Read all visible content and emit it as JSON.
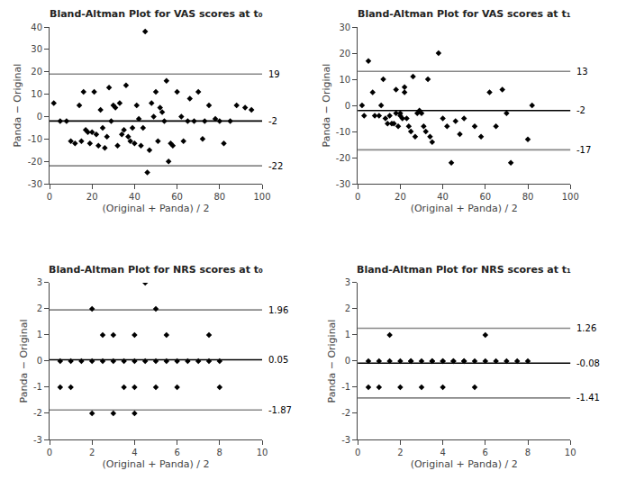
{
  "chart_data": [
    {
      "type": "scatter",
      "title": "Bland-Altman Plot for VAS scores at t₀",
      "x_label": "(Original + Panda) / 2",
      "y_label": "Panda − Original",
      "x": [
        2,
        5,
        8,
        10,
        12,
        14,
        15,
        16,
        17,
        18,
        19,
        20,
        21,
        22,
        23,
        24,
        25,
        26,
        27,
        28,
        29,
        30,
        31,
        32,
        33,
        34,
        35,
        36,
        37,
        38,
        39,
        40,
        41,
        42,
        43,
        44,
        45,
        46,
        47,
        48,
        49,
        50,
        51,
        52,
        53,
        54,
        55,
        56,
        57,
        58,
        60,
        62,
        63,
        65,
        66,
        68,
        70,
        72,
        73,
        75,
        78,
        80,
        82,
        85,
        88,
        92,
        95
      ],
      "values": [
        6,
        -2,
        -2,
        -11,
        -12,
        5,
        -11,
        11,
        -6,
        -7,
        -12,
        -7,
        11,
        -8,
        -13,
        3,
        -5,
        -14,
        -9,
        13,
        -2,
        5,
        4,
        -13,
        6,
        -8,
        -6,
        14,
        -9,
        -11,
        -5,
        -12,
        5,
        -1,
        -13,
        -5,
        38,
        -25,
        -15,
        6,
        0,
        11,
        -11,
        4,
        2,
        -2,
        16,
        -20,
        -12,
        -13,
        11,
        0,
        -11,
        -2,
        8,
        -2,
        11,
        -10,
        -2,
        5,
        -1,
        -2,
        -12,
        -2,
        5,
        4,
        3
      ],
      "color": "#000000",
      "marker": "diamond",
      "grid": false,
      "xlim": [
        0,
        100
      ],
      "ylim": [
        -30,
        40
      ],
      "xticks": [
        0,
        20,
        40,
        60,
        80,
        100
      ],
      "yticks": [
        -30,
        -20,
        -10,
        0,
        10,
        20,
        30,
        40
      ],
      "reference_lines": [
        {
          "value": 19,
          "label": "19",
          "color": "#888888"
        },
        {
          "value": -2,
          "label": "-2",
          "color": "#000000"
        },
        {
          "value": -22,
          "label": "-22",
          "color": "#888888"
        }
      ]
    },
    {
      "type": "scatter",
      "title": "Bland-Altman Plot for VAS scores at t₁",
      "x_label": "(Original + Panda) / 2",
      "y_label": "Panda − Original",
      "x": [
        2,
        3,
        5,
        7,
        8,
        10,
        11,
        12,
        13,
        14,
        15,
        16,
        17,
        18,
        18,
        19,
        20,
        20,
        21,
        22,
        22,
        23,
        24,
        25,
        26,
        27,
        28,
        29,
        30,
        31,
        32,
        33,
        34,
        35,
        38,
        40,
        42,
        44,
        46,
        48,
        50,
        55,
        58,
        62,
        65,
        68,
        70,
        72,
        80,
        82
      ],
      "values": [
        0,
        -4,
        17,
        5,
        -4,
        -4,
        0,
        10,
        -5,
        -7,
        -4,
        -7,
        -7,
        -3,
        6,
        -8,
        -4,
        -3,
        -5,
        5,
        7,
        -5,
        -8,
        -10,
        11,
        -12,
        -3,
        -2,
        -3,
        -8,
        -10,
        10,
        -12,
        -14,
        20,
        -5,
        -8,
        -22,
        -6,
        -11,
        -5,
        -8,
        -12,
        5,
        -8,
        6,
        -3,
        -22,
        -13,
        0
      ],
      "color": "#000000",
      "marker": "diamond",
      "grid": false,
      "xlim": [
        0,
        100
      ],
      "ylim": [
        -30,
        30
      ],
      "xticks": [
        0,
        20,
        40,
        60,
        80,
        100
      ],
      "yticks": [
        -30,
        -20,
        -10,
        0,
        10,
        20,
        30
      ],
      "reference_lines": [
        {
          "value": 13,
          "label": "13",
          "color": "#888888"
        },
        {
          "value": -2,
          "label": "-2",
          "color": "#000000"
        },
        {
          "value": -17,
          "label": "-17",
          "color": "#888888"
        }
      ]
    },
    {
      "type": "scatter",
      "title": "Bland-Altman Plot for NRS scores at t₀",
      "x_label": "(Original + Panda) / 2",
      "y_label": "Panda − Original",
      "x": [
        0.5,
        0.5,
        1,
        1,
        1.5,
        2,
        2,
        2,
        2.5,
        2.5,
        3,
        3,
        3,
        3.5,
        3.5,
        4,
        4,
        4,
        4,
        4.5,
        4.5,
        5,
        5,
        5,
        5.5,
        5.5,
        6,
        6,
        6.5,
        7,
        7.5,
        7.5,
        8,
        8
      ],
      "values": [
        -1,
        0,
        -1,
        0,
        0,
        2,
        -2,
        0,
        1,
        0,
        1,
        -2,
        0,
        -1,
        0,
        1,
        -1,
        -2,
        0,
        3,
        0,
        2,
        -1,
        0,
        1,
        0,
        0,
        -1,
        0,
        0,
        1,
        0,
        0,
        -1
      ],
      "color": "#000000",
      "marker": "diamond",
      "grid": false,
      "xlim": [
        0,
        10
      ],
      "ylim": [
        -3,
        3
      ],
      "xticks": [
        0,
        2,
        4,
        6,
        8,
        10
      ],
      "yticks": [
        -3,
        -2,
        -1,
        0,
        1,
        2,
        3
      ],
      "reference_lines": [
        {
          "value": 1.96,
          "label": "1.96",
          "color": "#888888"
        },
        {
          "value": 0.05,
          "label": "0.05",
          "color": "#000000"
        },
        {
          "value": -1.87,
          "label": "-1.87",
          "color": "#888888"
        }
      ]
    },
    {
      "type": "scatter",
      "title": "Bland-Altman Plot for NRS scores at t₁",
      "x_label": "(Original + Panda) / 2",
      "y_label": "Panda − Original",
      "x": [
        0.5,
        0.5,
        1,
        1,
        1.5,
        1.5,
        2,
        2,
        2.5,
        2.5,
        3,
        3,
        3.5,
        3.5,
        4,
        4,
        4,
        4.5,
        4.5,
        5,
        5,
        5.5,
        5.5,
        6,
        6,
        6.5,
        7,
        7.5,
        8
      ],
      "values": [
        0,
        -1,
        0,
        -1,
        1,
        0,
        0,
        -1,
        0,
        0,
        -1,
        0,
        0,
        0,
        0,
        -1,
        0,
        0,
        0,
        0,
        0,
        -1,
        0,
        0,
        1,
        0,
        0,
        0,
        0
      ],
      "color": "#000000",
      "marker": "diamond",
      "grid": false,
      "xlim": [
        0,
        10
      ],
      "ylim": [
        -3,
        3
      ],
      "xticks": [
        0,
        2,
        4,
        6,
        8,
        10
      ],
      "yticks": [
        -3,
        -2,
        -1,
        0,
        1,
        2,
        3
      ],
      "reference_lines": [
        {
          "value": 1.26,
          "label": "1.26",
          "color": "#888888"
        },
        {
          "value": -0.08,
          "label": "-0.08",
          "color": "#000000"
        },
        {
          "value": -1.41,
          "label": "-1.41",
          "color": "#888888"
        }
      ]
    }
  ]
}
